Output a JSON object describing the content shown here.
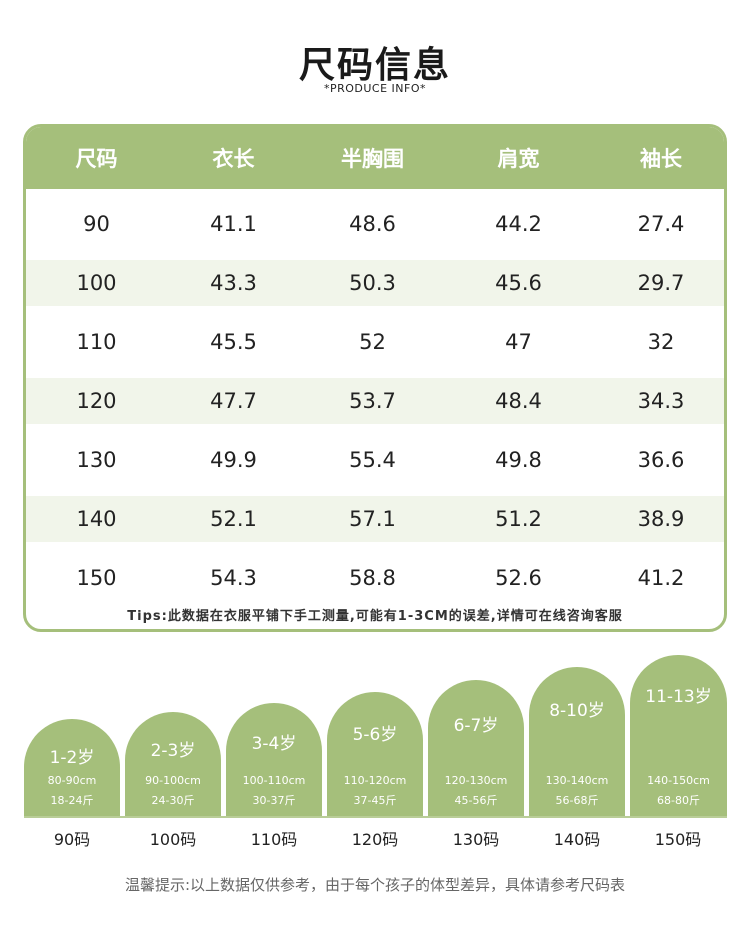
{
  "title": "尺码信息",
  "subtitle": "*PRODUCE INFO*",
  "table": {
    "headers": [
      "尺码",
      "衣长",
      "半胸围",
      "肩宽",
      "袖长"
    ],
    "rows": [
      [
        "90",
        "41.1",
        "48.6",
        "44.2",
        "27.4"
      ],
      [
        "100",
        "43.3",
        "50.3",
        "45.6",
        "29.7"
      ],
      [
        "110",
        "45.5",
        "52",
        "47",
        "32"
      ],
      [
        "120",
        "47.7",
        "53.7",
        "48.4",
        "34.3"
      ],
      [
        "130",
        "49.9",
        "55.4",
        "49.8",
        "36.6"
      ],
      [
        "140",
        "52.1",
        "57.1",
        "51.2",
        "38.9"
      ],
      [
        "150",
        "54.3",
        "58.8",
        "52.6",
        "41.2"
      ]
    ],
    "tips": "Tips:此数据在衣服平铺下手工测量,可能有1-3CM的误差,详情可在线咨询客服"
  },
  "size_guide": [
    {
      "age": "1-2岁",
      "height": "80-90cm",
      "weight": "18-24斤",
      "code": "90码"
    },
    {
      "age": "2-3岁",
      "height": "90-100cm",
      "weight": "24-30斤",
      "code": "100码"
    },
    {
      "age": "3-4岁",
      "height": "100-110cm",
      "weight": "30-37斤",
      "code": "110码"
    },
    {
      "age": "5-6岁",
      "height": "110-120cm",
      "weight": "37-45斤",
      "code": "120码"
    },
    {
      "age": "6-7岁",
      "height": "120-130cm",
      "weight": "45-56斤",
      "code": "130码"
    },
    {
      "age": "8-10岁",
      "height": "130-140cm",
      "weight": "56-68斤",
      "code": "140码"
    },
    {
      "age": "11-13岁",
      "height": "140-150cm",
      "weight": "68-80斤",
      "code": "150码"
    }
  ],
  "note": "温馨提示:以上数据仅供参考，由于每个孩子的体型差异，具体请参考尺码表",
  "colors": {
    "accent": "#a5bf7b",
    "row_alt": "#f1f5ea"
  }
}
